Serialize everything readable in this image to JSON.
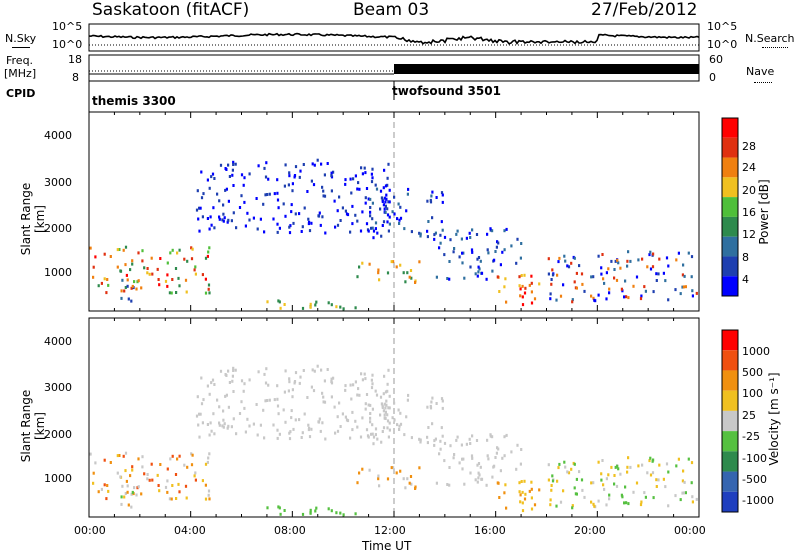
{
  "header": {
    "station": "Saskatoon (fitACF)",
    "beam": "Beam 03",
    "date": "27/Feb/2012"
  },
  "top_panels": {
    "nsky_label": "N.Sky",
    "nsearch_label": "N.Search",
    "freq_label": "Freq.",
    "freq_unit": "[MHz]",
    "nave_label": "Nave",
    "cpid_label": "CPID",
    "noise_ticks_left": [
      "10^5",
      "10^0"
    ],
    "noise_ticks_right": [
      "10^5",
      "10^0"
    ],
    "freq_ticks": [
      "18",
      "8"
    ],
    "nave_ticks": [
      "60",
      "0"
    ],
    "cpid_segments": [
      {
        "name": "themis 3300",
        "start_hour": 0
      },
      {
        "name": "twofsound 3501",
        "start_hour": 12
      }
    ]
  },
  "chart_data": [
    {
      "type": "heatmap",
      "name": "power",
      "ylabel": "Slant Range [km]",
      "ylim": [
        180,
        4500
      ],
      "yticks": [
        "4000",
        "3000",
        "2000",
        "1000"
      ],
      "xlim": [
        0,
        24
      ],
      "colorbar": {
        "label": "Power [dB]",
        "ticks": [
          "28",
          "24",
          "20",
          "16",
          "12",
          "8",
          "4"
        ],
        "colors": [
          "#0000ff",
          "#1e3fb0",
          "#2f6f9f",
          "#2e8a4d",
          "#4fbf3a",
          "#f0c020",
          "#f08010",
          "#e03010",
          "#ff0000"
        ]
      }
    },
    {
      "type": "heatmap",
      "name": "velocity",
      "ylabel": "Slant Range [km]",
      "ylim": [
        180,
        4500
      ],
      "yticks": [
        "4000",
        "3000",
        "2000",
        "1000"
      ],
      "xlim": [
        0,
        24
      ],
      "xlabel": "Time UT",
      "xticks": [
        "00:00",
        "04:00",
        "08:00",
        "12:00",
        "16:00",
        "20:00",
        "00:00"
      ],
      "colorbar": {
        "label": "Velocity [m s⁻¹]",
        "ticks": [
          "1000",
          "500",
          "100",
          "25",
          "-25",
          "-100",
          "-500",
          "-1000"
        ],
        "colors": [
          "#1f3fbf",
          "#3565b0",
          "#2e8a4d",
          "#55c040",
          "#c8c8c8",
          "#f0c020",
          "#f09010",
          "#f05010",
          "#ff0000"
        ]
      }
    }
  ]
}
